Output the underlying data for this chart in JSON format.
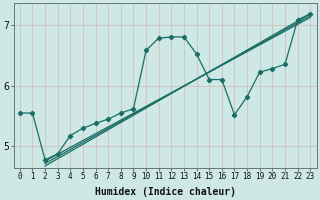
{
  "xlabel": "Humidex (Indice chaleur)",
  "ylabel": "",
  "bg_color": "#cde8e5",
  "grid_color": "#b8d8d4",
  "line_color": "#1a6e65",
  "xlim": [
    -0.5,
    23.5
  ],
  "ylim": [
    4.65,
    7.35
  ],
  "yticks": [
    5,
    6,
    7
  ],
  "ytick_labels": [
    "5",
    "6",
    "7"
  ],
  "xticks": [
    0,
    1,
    2,
    3,
    4,
    5,
    6,
    7,
    8,
    9,
    10,
    11,
    12,
    13,
    14,
    15,
    16,
    17,
    18,
    19,
    20,
    21,
    22,
    23
  ],
  "curve1_x": [
    0,
    1,
    2,
    3,
    4,
    5,
    6,
    7,
    8,
    9,
    10,
    11,
    12,
    13,
    14,
    15,
    16,
    17,
    18,
    19,
    20,
    21,
    22,
    23
  ],
  "curve1_y": [
    5.55,
    5.55,
    4.78,
    4.88,
    5.18,
    5.3,
    5.38,
    5.45,
    5.55,
    5.62,
    6.58,
    6.78,
    6.8,
    6.8,
    6.52,
    6.1,
    6.1,
    5.52,
    5.82,
    6.22,
    6.28,
    6.35,
    7.08,
    7.18
  ],
  "line2_x": [
    2,
    23
  ],
  "line2_y": [
    4.68,
    7.18
  ],
  "line3_x": [
    2,
    23
  ],
  "line3_y": [
    4.72,
    7.15
  ],
  "line4_x": [
    2,
    23
  ],
  "line4_y": [
    4.76,
    7.12
  ],
  "xlabel_fontsize": 7,
  "tick_fontsize": 5.5,
  "ytick_fontsize": 7
}
